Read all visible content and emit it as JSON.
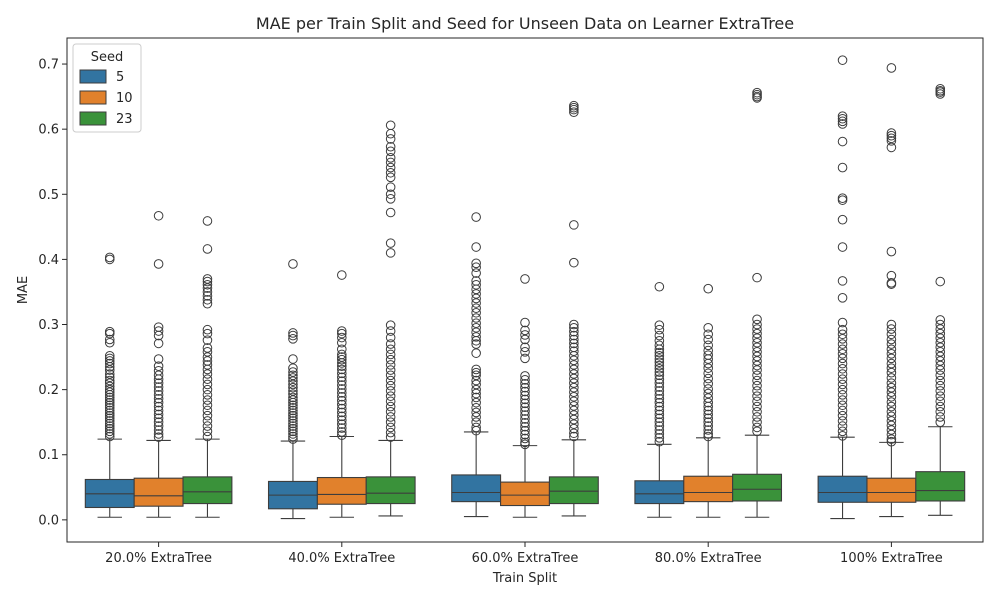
{
  "chart_data": {
    "type": "boxplot",
    "title": "MAE per Train Split and Seed for Unseen Data on Learner ExtraTree",
    "xlabel": "Train Split",
    "ylabel": "MAE",
    "ylim": [
      -0.034,
      0.74
    ],
    "yticks": [
      0.0,
      0.1,
      0.2,
      0.3,
      0.4,
      0.5,
      0.6,
      0.7
    ],
    "ytick_labels": [
      "0.0",
      "0.1",
      "0.2",
      "0.3",
      "0.4",
      "0.5",
      "0.6",
      "0.7"
    ],
    "categories": [
      "20.0% ExtraTree",
      "40.0% ExtraTree",
      "60.0% ExtraTree",
      "80.0% ExtraTree",
      "100% ExtraTree"
    ],
    "legend": {
      "title": "Seed",
      "position": "top-left"
    },
    "series": [
      {
        "name": "5",
        "color": "#3274a1",
        "boxes": [
          {
            "whislo": 0.004,
            "q1": 0.019,
            "med": 0.04,
            "q3": 0.062,
            "whishi": 0.124,
            "fliers": [
              0.403,
              0.4,
              0.289,
              0.286,
              0.277,
              0.272,
              0.252,
              0.248,
              0.244,
              0.24,
              0.235,
              0.23,
              0.224,
              0.219,
              0.214,
              0.21,
              0.205,
              0.2,
              0.196,
              0.192,
              0.188,
              0.184,
              0.18,
              0.176,
              0.172,
              0.168,
              0.164,
              0.16,
              0.156,
              0.152,
              0.148,
              0.144,
              0.14,
              0.136,
              0.132,
              0.128
            ]
          },
          {
            "whislo": 0.002,
            "q1": 0.017,
            "med": 0.038,
            "q3": 0.059,
            "whishi": 0.121,
            "fliers": [
              0.393,
              0.287,
              0.283,
              0.278,
              0.247,
              0.233,
              0.227,
              0.222,
              0.218,
              0.213,
              0.208,
              0.203,
              0.198,
              0.193,
              0.188,
              0.184,
              0.18,
              0.176,
              0.172,
              0.168,
              0.164,
              0.16,
              0.156,
              0.152,
              0.148,
              0.144,
              0.14,
              0.136,
              0.132,
              0.128,
              0.124
            ]
          },
          {
            "whislo": 0.005,
            "q1": 0.028,
            "med": 0.042,
            "q3": 0.069,
            "whishi": 0.135,
            "fliers": [
              0.465,
              0.419,
              0.394,
              0.388,
              0.379,
              0.367,
              0.361,
              0.354,
              0.347,
              0.34,
              0.333,
              0.325,
              0.318,
              0.31,
              0.302,
              0.295,
              0.288,
              0.281,
              0.275,
              0.27,
              0.256,
              0.231,
              0.226,
              0.222,
              0.214,
              0.208,
              0.2,
              0.194,
              0.188,
              0.18,
              0.172,
              0.165,
              0.158,
              0.15,
              0.142,
              0.137
            ]
          },
          {
            "whislo": 0.004,
            "q1": 0.025,
            "med": 0.04,
            "q3": 0.06,
            "whishi": 0.116,
            "fliers": [
              0.358,
              0.299,
              0.292,
              0.283,
              0.275,
              0.268,
              0.262,
              0.257,
              0.252,
              0.247,
              0.242,
              0.237,
              0.232,
              0.227,
              0.222,
              0.216,
              0.21,
              0.204,
              0.198,
              0.192,
              0.186,
              0.18,
              0.174,
              0.168,
              0.162,
              0.156,
              0.15,
              0.144,
              0.138,
              0.132,
              0.126,
              0.12
            ]
          },
          {
            "whislo": 0.002,
            "q1": 0.027,
            "med": 0.042,
            "q3": 0.067,
            "whishi": 0.127,
            "fliers": [
              0.706,
              0.62,
              0.616,
              0.612,
              0.608,
              0.581,
              0.541,
              0.494,
              0.491,
              0.461,
              0.419,
              0.367,
              0.341,
              0.303,
              0.292,
              0.285,
              0.278,
              0.27,
              0.262,
              0.255,
              0.248,
              0.24,
              0.232,
              0.224,
              0.216,
              0.208,
              0.2,
              0.192,
              0.184,
              0.176,
              0.168,
              0.16,
              0.152,
              0.144,
              0.136,
              0.129
            ]
          }
        ]
      },
      {
        "name": "10",
        "color": "#e1812c",
        "boxes": [
          {
            "whislo": 0.004,
            "q1": 0.021,
            "med": 0.037,
            "q3": 0.064,
            "whishi": 0.122,
            "fliers": [
              0.467,
              0.393,
              0.296,
              0.29,
              0.283,
              0.271,
              0.247,
              0.236,
              0.229,
              0.222,
              0.216,
              0.21,
              0.204,
              0.198,
              0.192,
              0.186,
              0.18,
              0.174,
              0.168,
              0.162,
              0.156,
              0.15,
              0.144,
              0.138,
              0.132,
              0.127
            ]
          },
          {
            "whislo": 0.004,
            "q1": 0.024,
            "med": 0.039,
            "q3": 0.065,
            "whishi": 0.128,
            "fliers": [
              0.376,
              0.29,
              0.286,
              0.28,
              0.272,
              0.262,
              0.254,
              0.25,
              0.246,
              0.241,
              0.236,
              0.231,
              0.225,
              0.219,
              0.213,
              0.207,
              0.201,
              0.195,
              0.189,
              0.183,
              0.177,
              0.171,
              0.165,
              0.159,
              0.153,
              0.147,
              0.141,
              0.135,
              0.13
            ]
          },
          {
            "whislo": 0.004,
            "q1": 0.022,
            "med": 0.038,
            "q3": 0.058,
            "whishi": 0.114,
            "fliers": [
              0.37,
              0.303,
              0.291,
              0.284,
              0.277,
              0.265,
              0.258,
              0.248,
              0.221,
              0.215,
              0.209,
              0.203,
              0.197,
              0.191,
              0.185,
              0.179,
              0.173,
              0.167,
              0.161,
              0.155,
              0.149,
              0.143,
              0.137,
              0.131,
              0.125,
              0.119,
              0.116
            ]
          },
          {
            "whislo": 0.004,
            "q1": 0.028,
            "med": 0.042,
            "q3": 0.067,
            "whishi": 0.126,
            "fliers": [
              0.355,
              0.295,
              0.285,
              0.277,
              0.268,
              0.26,
              0.253,
              0.247,
              0.24,
              0.233,
              0.225,
              0.217,
              0.209,
              0.201,
              0.194,
              0.187,
              0.18,
              0.174,
              0.168,
              0.162,
              0.156,
              0.15,
              0.144,
              0.138,
              0.132,
              0.128
            ]
          },
          {
            "whislo": 0.005,
            "q1": 0.027,
            "med": 0.042,
            "q3": 0.064,
            "whishi": 0.119,
            "fliers": [
              0.694,
              0.594,
              0.59,
              0.586,
              0.582,
              0.572,
              0.412,
              0.375,
              0.364,
              0.362,
              0.3,
              0.293,
              0.285,
              0.277,
              0.27,
              0.262,
              0.255,
              0.248,
              0.24,
              0.233,
              0.226,
              0.218,
              0.21,
              0.203,
              0.196,
              0.189,
              0.181,
              0.174,
              0.166,
              0.159,
              0.152,
              0.145,
              0.138,
              0.131,
              0.124,
              0.12
            ]
          }
        ]
      },
      {
        "name": "23",
        "color": "#3a923a",
        "boxes": [
          {
            "whislo": 0.004,
            "q1": 0.025,
            "med": 0.043,
            "q3": 0.066,
            "whishi": 0.124,
            "fliers": [
              0.459,
              0.416,
              0.37,
              0.366,
              0.361,
              0.356,
              0.35,
              0.344,
              0.338,
              0.332,
              0.292,
              0.286,
              0.276,
              0.264,
              0.258,
              0.25,
              0.244,
              0.238,
              0.231,
              0.224,
              0.216,
              0.208,
              0.2,
              0.192,
              0.184,
              0.176,
              0.168,
              0.16,
              0.152,
              0.144,
              0.136,
              0.128
            ]
          },
          {
            "whislo": 0.006,
            "q1": 0.025,
            "med": 0.041,
            "q3": 0.066,
            "whishi": 0.122,
            "fliers": [
              0.606,
              0.593,
              0.585,
              0.573,
              0.566,
              0.556,
              0.549,
              0.541,
              0.533,
              0.526,
              0.511,
              0.5,
              0.493,
              0.472,
              0.425,
              0.41,
              0.299,
              0.29,
              0.28,
              0.27,
              0.262,
              0.254,
              0.246,
              0.238,
              0.23,
              0.222,
              0.214,
              0.206,
              0.198,
              0.19,
              0.182,
              0.174,
              0.166,
              0.158,
              0.15,
              0.142,
              0.134,
              0.127
            ]
          },
          {
            "whislo": 0.006,
            "q1": 0.025,
            "med": 0.044,
            "q3": 0.066,
            "whishi": 0.123,
            "fliers": [
              0.636,
              0.633,
              0.63,
              0.626,
              0.453,
              0.395,
              0.3,
              0.295,
              0.289,
              0.283,
              0.277,
              0.271,
              0.265,
              0.259,
              0.252,
              0.245,
              0.238,
              0.231,
              0.224,
              0.217,
              0.21,
              0.203,
              0.196,
              0.189,
              0.182,
              0.175,
              0.168,
              0.161,
              0.154,
              0.147,
              0.14,
              0.133,
              0.128
            ]
          },
          {
            "whislo": 0.004,
            "q1": 0.029,
            "med": 0.047,
            "q3": 0.07,
            "whishi": 0.13,
            "fliers": [
              0.656,
              0.653,
              0.65,
              0.648,
              0.372,
              0.308,
              0.3,
              0.293,
              0.286,
              0.279,
              0.272,
              0.265,
              0.258,
              0.251,
              0.244,
              0.237,
              0.23,
              0.222,
              0.214,
              0.206,
              0.198,
              0.19,
              0.182,
              0.174,
              0.166,
              0.158,
              0.15,
              0.142,
              0.136
            ]
          },
          {
            "whislo": 0.007,
            "q1": 0.029,
            "med": 0.045,
            "q3": 0.074,
            "whishi": 0.143,
            "fliers": [
              0.662,
              0.659,
              0.657,
              0.654,
              0.366,
              0.307,
              0.3,
              0.293,
              0.286,
              0.279,
              0.272,
              0.265,
              0.258,
              0.251,
              0.244,
              0.237,
              0.23,
              0.222,
              0.214,
              0.206,
              0.198,
              0.19,
              0.182,
              0.174,
              0.166,
              0.158,
              0.15
            ]
          }
        ]
      }
    ]
  }
}
